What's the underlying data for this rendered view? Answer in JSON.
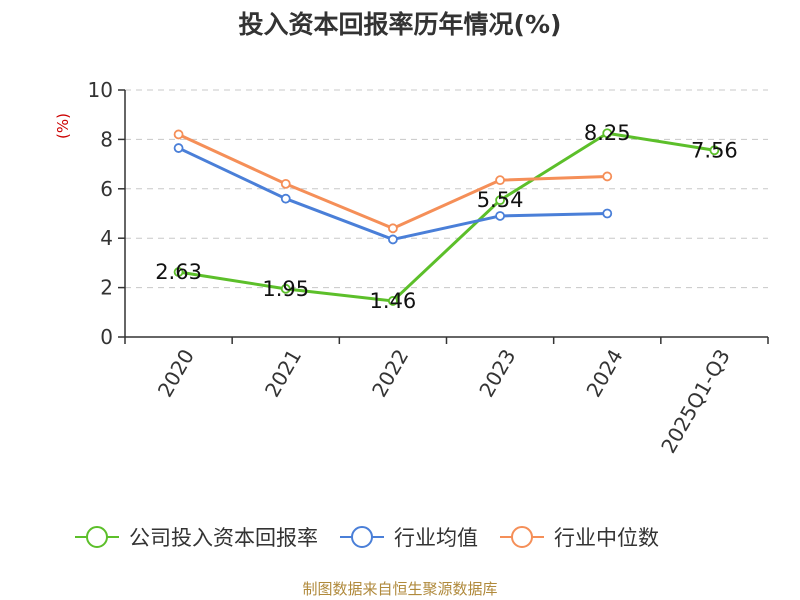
{
  "title": "投入资本回报率历年情况(%)",
  "footer": "制图数据来自恒生聚源数据库",
  "chart_data": {
    "type": "line",
    "title": "投入资本回报率历年情况(%)",
    "ylabel": "(%)",
    "xlabel": "",
    "ylim": [
      0,
      10
    ],
    "yticks": [
      0,
      2,
      4,
      6,
      8,
      10
    ],
    "grid": true,
    "legend": "bottom",
    "categories": [
      "2020",
      "2021",
      "2022",
      "2023",
      "2024",
      "2025Q1-Q3"
    ],
    "series": [
      {
        "name": "公司投入资本回报率",
        "color": "#5cbf2a",
        "values": [
          2.63,
          1.95,
          1.46,
          5.54,
          8.25,
          7.56
        ],
        "labels": [
          "2.63",
          "1.95",
          "1.46",
          "5.54",
          "8.25",
          "7.56"
        ]
      },
      {
        "name": "行业均值",
        "color": "#4a7fd8",
        "values": [
          7.65,
          5.6,
          3.95,
          4.9,
          5.0,
          null
        ]
      },
      {
        "name": "行业中位数",
        "color": "#f58f58",
        "values": [
          8.2,
          6.2,
          4.4,
          6.35,
          6.5,
          null
        ]
      }
    ]
  }
}
